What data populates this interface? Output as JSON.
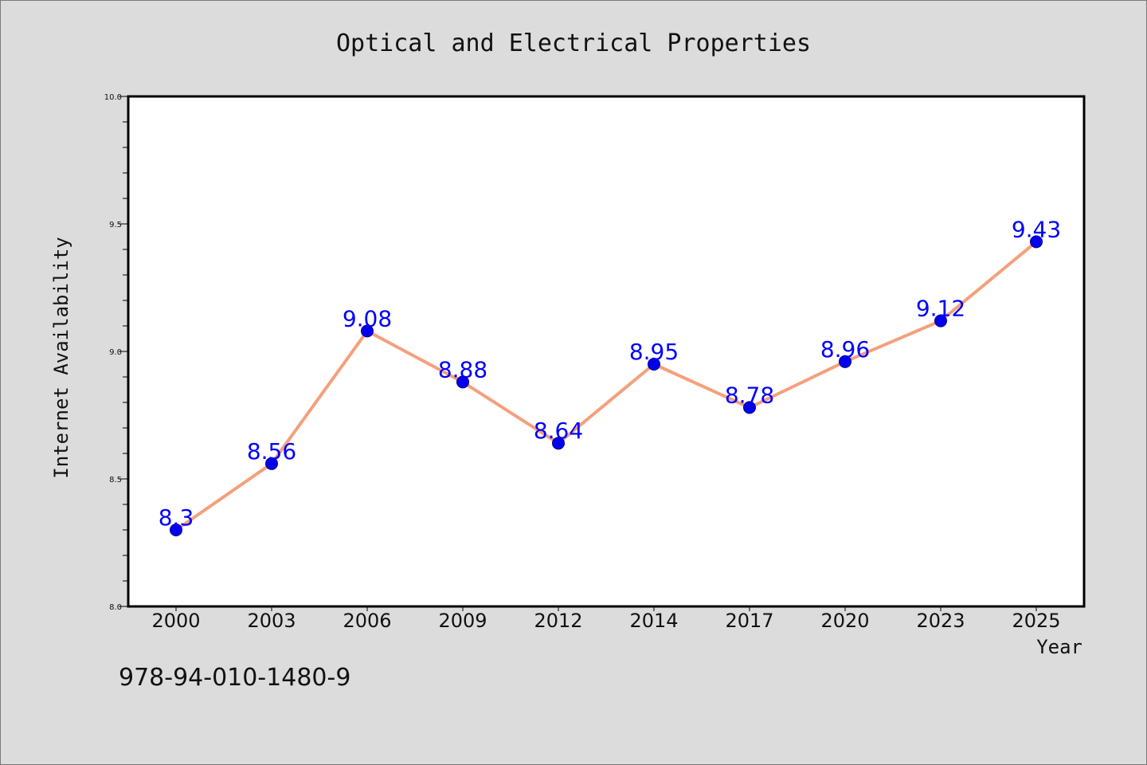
{
  "chart_data": {
    "type": "line",
    "title": "Optical and Electrical Properties",
    "xlabel": "Year",
    "ylabel": "Internet Availability",
    "categories": [
      "2000",
      "2003",
      "2006",
      "2009",
      "2012",
      "2014",
      "2017",
      "2020",
      "2023",
      "2025"
    ],
    "series": [
      {
        "values": [
          8.3,
          8.56,
          9.08,
          8.88,
          8.64,
          8.95,
          8.78,
          8.96,
          9.12,
          9.43
        ]
      }
    ],
    "data_labels": [
      "8.3",
      "8.56",
      "9.08",
      "8.88",
      "8.64",
      "8.95",
      "8.78",
      "8.96",
      "9.12",
      "9.43"
    ],
    "ylim": [
      8.0,
      10.0
    ],
    "yticks": [
      "8.0",
      "8.5",
      "9.0",
      "9.5",
      "10.0"
    ],
    "grid": false,
    "legend": "none",
    "colors": {
      "line": "#f4a07c",
      "marker": "#0000ee",
      "marker_edge": "#00008b",
      "data_label": "#0000ff",
      "plot_background": "#ffffff",
      "figure_background": "#dcdcdc"
    }
  },
  "footnote": "978-94-010-1480-9"
}
